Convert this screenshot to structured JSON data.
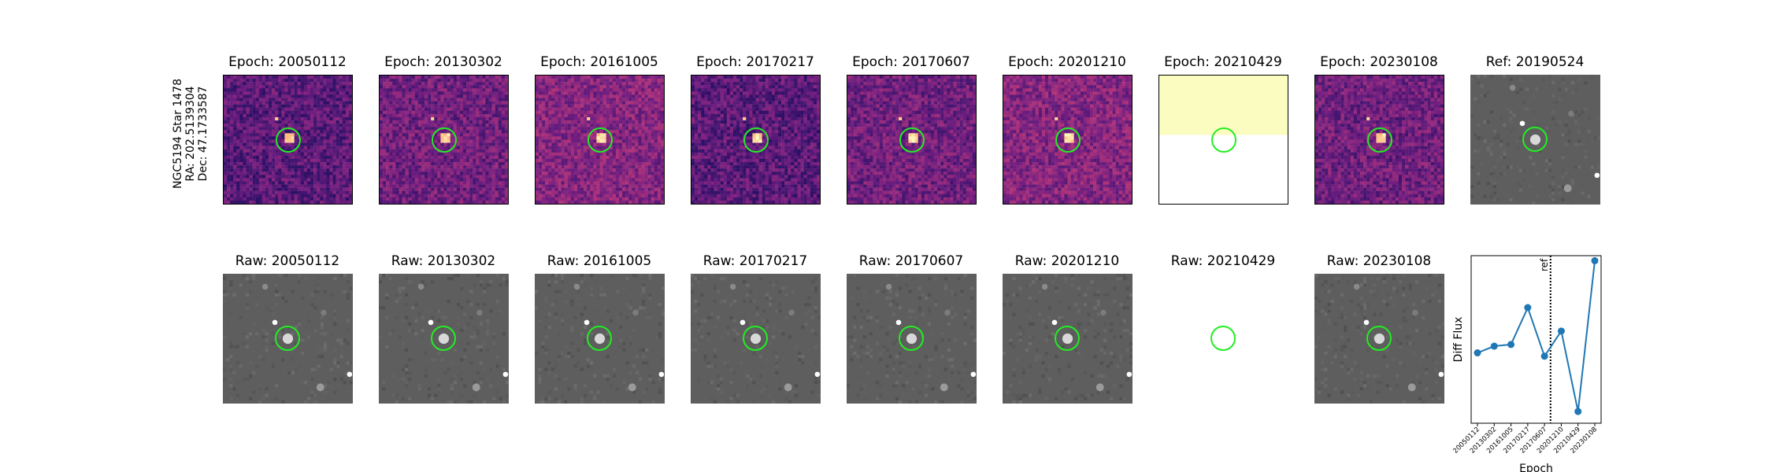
{
  "target_label": [
    "NGC5194 Star 1478",
    "RA: 202.5139304",
    "Dec: 47.1733587"
  ],
  "diff_row": [
    {
      "title": "Epoch: 20050112",
      "style": "magma"
    },
    {
      "title": "Epoch: 20130302",
      "style": "magma"
    },
    {
      "title": "Epoch: 20161005",
      "style": "magma"
    },
    {
      "title": "Epoch: 20170217",
      "style": "magma"
    },
    {
      "title": "Epoch: 20170607",
      "style": "magma"
    },
    {
      "title": "Epoch: 20201210",
      "style": "magma"
    },
    {
      "title": "Epoch: 20210429",
      "style": "partial-yellow"
    },
    {
      "title": "Epoch: 20230108",
      "style": "magma"
    },
    {
      "title": "Ref: 20190524",
      "style": "gray"
    }
  ],
  "raw_row": [
    {
      "title": "Raw: 20050112",
      "style": "gray"
    },
    {
      "title": "Raw: 20130302",
      "style": "gray"
    },
    {
      "title": "Raw: 20161005",
      "style": "gray"
    },
    {
      "title": "Raw: 20170217",
      "style": "gray"
    },
    {
      "title": "Raw: 20170607",
      "style": "gray"
    },
    {
      "title": "Raw: 20201210",
      "style": "gray"
    },
    {
      "title": "Raw: 20210429",
      "style": "empty"
    },
    {
      "title": "Raw: 20230108",
      "style": "gray"
    }
  ],
  "colors": {
    "circle": "#22ee22",
    "line": "#1f77b4",
    "yellow_fill": "#fbfdc0"
  },
  "chart_data": {
    "type": "line",
    "x": [
      "20050112",
      "20130302",
      "20161005",
      "20170217",
      "20170607",
      "20201210",
      "20210429",
      "20230108"
    ],
    "values": [
      0.42,
      0.46,
      0.47,
      0.69,
      0.4,
      0.55,
      0.07,
      0.97
    ],
    "xlabel": "Epoch",
    "ylabel": "Diff Flux",
    "ref_marker": {
      "label": "ref",
      "position_between": [
        "20170607",
        "20201210"
      ]
    },
    "grid": false
  }
}
